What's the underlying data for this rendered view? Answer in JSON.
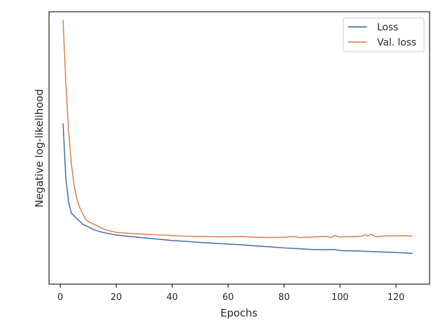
{
  "chart_data": {
    "type": "line",
    "xlabel": "Epochs",
    "ylabel": "Negative log-likelihood",
    "xlim": [
      -4,
      132
    ],
    "ylim": [
      0,
      1
    ],
    "x_ticks": [
      0,
      20,
      40,
      60,
      80,
      100,
      120
    ],
    "y_ticks_shown": false,
    "y_scale_note": "y axis has no tick labels; values are relative (0 = bottom of axes, 1 = top)",
    "grid": false,
    "legend": "top-right",
    "series": [
      {
        "name": "Loss",
        "color": "#4c72b0",
        "points": [
          [
            1,
            0.59
          ],
          [
            2,
            0.39
          ],
          [
            3,
            0.3
          ],
          [
            4,
            0.26
          ],
          [
            5,
            0.25
          ],
          [
            6,
            0.24
          ],
          [
            7,
            0.23
          ],
          [
            8,
            0.22
          ],
          [
            10,
            0.21
          ],
          [
            12,
            0.2
          ],
          [
            15,
            0.19
          ],
          [
            20,
            0.18
          ],
          [
            25,
            0.175
          ],
          [
            30,
            0.17
          ],
          [
            35,
            0.165
          ],
          [
            40,
            0.16
          ],
          [
            45,
            0.157
          ],
          [
            50,
            0.153
          ],
          [
            55,
            0.15
          ],
          [
            60,
            0.147
          ],
          [
            65,
            0.144
          ],
          [
            70,
            0.14
          ],
          [
            75,
            0.137
          ],
          [
            80,
            0.133
          ],
          [
            85,
            0.13
          ],
          [
            90,
            0.127
          ],
          [
            95,
            0.126
          ],
          [
            98,
            0.127
          ],
          [
            100,
            0.123
          ],
          [
            105,
            0.122
          ],
          [
            110,
            0.12
          ],
          [
            115,
            0.118
          ],
          [
            120,
            0.116
          ],
          [
            122,
            0.115
          ],
          [
            126,
            0.113
          ]
        ]
      },
      {
        "name": "Val. loss",
        "color": "#dd8452",
        "points": [
          [
            1,
            0.97
          ],
          [
            2,
            0.74
          ],
          [
            3,
            0.56
          ],
          [
            4,
            0.44
          ],
          [
            5,
            0.36
          ],
          [
            6,
            0.31
          ],
          [
            7,
            0.28
          ],
          [
            8,
            0.26
          ],
          [
            9,
            0.24
          ],
          [
            10,
            0.23
          ],
          [
            12,
            0.22
          ],
          [
            14,
            0.21
          ],
          [
            16,
            0.2
          ],
          [
            18,
            0.195
          ],
          [
            20,
            0.19
          ],
          [
            25,
            0.186
          ],
          [
            30,
            0.183
          ],
          [
            35,
            0.181
          ],
          [
            40,
            0.178
          ],
          [
            45,
            0.176
          ],
          [
            50,
            0.175
          ],
          [
            55,
            0.174
          ],
          [
            60,
            0.174
          ],
          [
            65,
            0.175
          ],
          [
            70,
            0.172
          ],
          [
            75,
            0.171
          ],
          [
            80,
            0.172
          ],
          [
            84,
            0.175
          ],
          [
            85,
            0.171
          ],
          [
            90,
            0.173
          ],
          [
            95,
            0.175
          ],
          [
            97,
            0.171
          ],
          [
            98,
            0.179
          ],
          [
            100,
            0.173
          ],
          [
            105,
            0.175
          ],
          [
            108,
            0.176
          ],
          [
            109,
            0.181
          ],
          [
            110,
            0.176
          ],
          [
            111,
            0.183
          ],
          [
            113,
            0.174
          ],
          [
            116,
            0.177
          ],
          [
            120,
            0.177
          ],
          [
            124,
            0.178
          ],
          [
            126,
            0.176
          ]
        ]
      }
    ]
  }
}
